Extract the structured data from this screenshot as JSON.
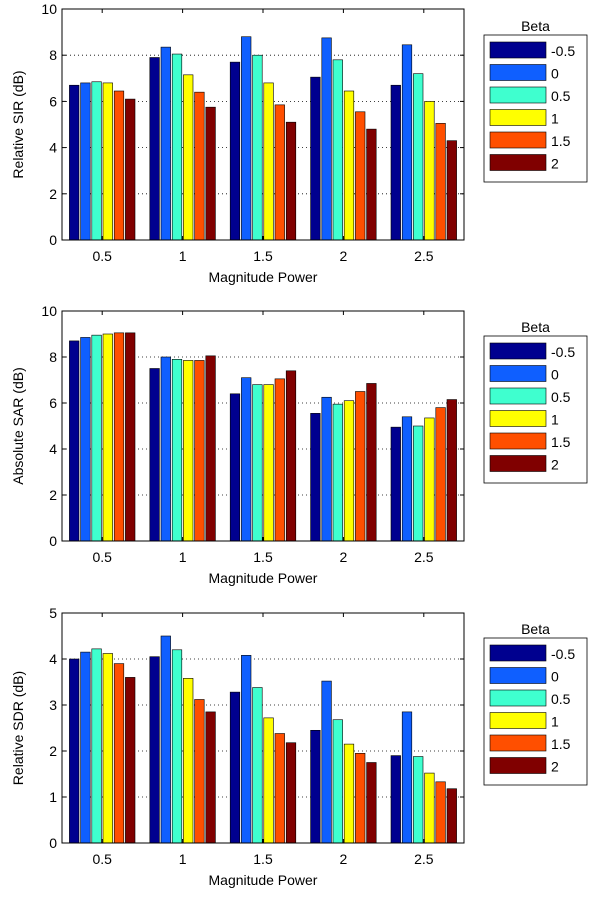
{
  "chart_data": [
    {
      "type": "bar",
      "title": "",
      "xlabel": "Magnitude Power",
      "ylabel": "Relative SIR (dB)",
      "categories": [
        "0.5",
        "1",
        "1.5",
        "2",
        "2.5"
      ],
      "ylim": [
        0,
        10
      ],
      "yticks": [
        0,
        2,
        4,
        6,
        8,
        10
      ],
      "grid": "y-dotted",
      "legend": {
        "title": "Beta",
        "position": "right"
      },
      "series": [
        {
          "name": "-0.5",
          "color": "#00008f",
          "values": [
            6.7,
            7.9,
            7.7,
            7.05,
            6.7
          ]
        },
        {
          "name": "0",
          "color": "#0f5fff",
          "values": [
            6.8,
            8.35,
            8.8,
            8.75,
            8.45
          ]
        },
        {
          "name": "0.5",
          "color": "#3fffcf",
          "values": [
            6.85,
            8.05,
            8.0,
            7.8,
            7.2
          ]
        },
        {
          "name": "1",
          "color": "#ffff00",
          "values": [
            6.8,
            7.15,
            6.8,
            6.45,
            6.0
          ]
        },
        {
          "name": "1.5",
          "color": "#ff4f00",
          "values": [
            6.45,
            6.4,
            5.85,
            5.55,
            5.05
          ]
        },
        {
          "name": "2",
          "color": "#800000",
          "values": [
            6.1,
            5.75,
            5.1,
            4.8,
            4.3
          ]
        }
      ]
    },
    {
      "type": "bar",
      "title": "",
      "xlabel": "Magnitude Power",
      "ylabel": "Absolute SAR (dB)",
      "categories": [
        "0.5",
        "1",
        "1.5",
        "2",
        "2.5"
      ],
      "ylim": [
        0,
        10
      ],
      "yticks": [
        0,
        2,
        4,
        6,
        8,
        10
      ],
      "grid": "y-dotted",
      "legend": {
        "title": "Beta",
        "position": "right"
      },
      "series": [
        {
          "name": "-0.5",
          "color": "#00008f",
          "values": [
            8.7,
            7.5,
            6.4,
            5.55,
            4.95
          ]
        },
        {
          "name": "0",
          "color": "#0f5fff",
          "values": [
            8.85,
            8.0,
            7.1,
            6.25,
            5.4
          ]
        },
        {
          "name": "0.5",
          "color": "#3fffcf",
          "values": [
            8.95,
            7.9,
            6.8,
            5.95,
            5.0
          ]
        },
        {
          "name": "1",
          "color": "#ffff00",
          "values": [
            9.0,
            7.85,
            6.8,
            6.1,
            5.35
          ]
        },
        {
          "name": "1.5",
          "color": "#ff4f00",
          "values": [
            9.05,
            7.85,
            7.05,
            6.5,
            5.8
          ]
        },
        {
          "name": "2",
          "color": "#800000",
          "values": [
            9.05,
            8.05,
            7.4,
            6.85,
            6.15
          ]
        }
      ]
    },
    {
      "type": "bar",
      "title": "",
      "xlabel": "Magnitude Power",
      "ylabel": "Relative SDR (dB)",
      "categories": [
        "0.5",
        "1",
        "1.5",
        "2",
        "2.5"
      ],
      "ylim": [
        0,
        5
      ],
      "yticks": [
        0,
        1,
        2,
        3,
        4,
        5
      ],
      "grid": "y-dotted",
      "legend": {
        "title": "Beta",
        "position": "right"
      },
      "series": [
        {
          "name": "-0.5",
          "color": "#00008f",
          "values": [
            4.0,
            4.05,
            3.28,
            2.45,
            1.9
          ]
        },
        {
          "name": "0",
          "color": "#0f5fff",
          "values": [
            4.15,
            4.5,
            4.08,
            3.52,
            2.85
          ]
        },
        {
          "name": "0.5",
          "color": "#3fffcf",
          "values": [
            4.22,
            4.2,
            3.38,
            2.68,
            1.88
          ]
        },
        {
          "name": "1",
          "color": "#ffff00",
          "values": [
            4.12,
            3.58,
            2.72,
            2.15,
            1.52
          ]
        },
        {
          "name": "1.5",
          "color": "#ff4f00",
          "values": [
            3.9,
            3.12,
            2.38,
            1.95,
            1.33
          ]
        },
        {
          "name": "2",
          "color": "#800000",
          "values": [
            3.6,
            2.85,
            2.18,
            1.75,
            1.18
          ]
        }
      ]
    }
  ]
}
